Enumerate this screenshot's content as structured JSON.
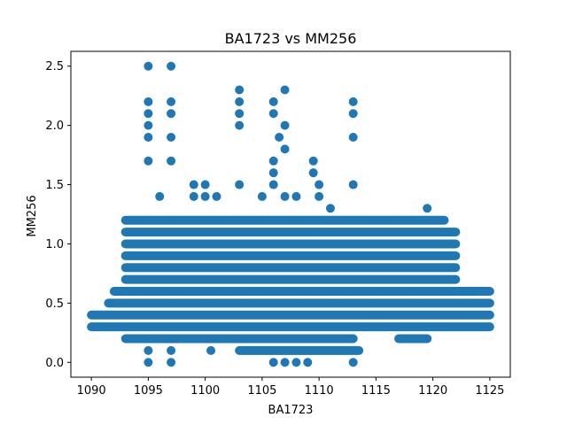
{
  "chart_data": {
    "type": "scatter",
    "title": "BA1723 vs MM256",
    "xlabel": "BA1723",
    "ylabel": "MM256",
    "xlim": [
      1088.2,
      1126.8
    ],
    "ylim": [
      -0.125,
      2.625
    ],
    "xticks": [
      1090,
      1095,
      1100,
      1105,
      1110,
      1115,
      1120,
      1125
    ],
    "yticks": [
      0.0,
      0.5,
      1.0,
      1.5,
      2.0,
      2.5
    ],
    "xtick_labels": [
      "1090",
      "1095",
      "1100",
      "1105",
      "1110",
      "1115",
      "1120",
      "1125"
    ],
    "ytick_labels": [
      "0.0",
      "0.5",
      "1.0",
      "1.5",
      "2.0",
      "2.5"
    ],
    "grid": false,
    "color": "#1f77b4",
    "bands": [
      {
        "y": 0.3,
        "x_start": 1090.0,
        "x_end": 1125.0
      },
      {
        "y": 0.4,
        "x_start": 1090.0,
        "x_end": 1125.0
      },
      {
        "y": 0.5,
        "x_start": 1091.5,
        "x_end": 1125.0
      },
      {
        "y": 0.6,
        "x_start": 1092.0,
        "x_end": 1125.0
      },
      {
        "y": 0.7,
        "x_start": 1093.0,
        "x_end": 1122.0
      },
      {
        "y": 0.8,
        "x_start": 1093.0,
        "x_end": 1122.0
      },
      {
        "y": 0.9,
        "x_start": 1093.0,
        "x_end": 1122.0
      },
      {
        "y": 1.0,
        "x_start": 1093.0,
        "x_end": 1122.0
      },
      {
        "y": 1.1,
        "x_start": 1093.0,
        "x_end": 1122.0
      },
      {
        "y": 1.2,
        "x_start": 1093.0,
        "x_end": 1121.0
      },
      {
        "y": 0.2,
        "x_start": 1093.0,
        "x_end": 1113.0
      },
      {
        "y": 0.2,
        "x_start": 1117.0,
        "x_end": 1119.5
      },
      {
        "y": 0.1,
        "x_start": 1103.0,
        "x_end": 1113.5
      }
    ],
    "points": [
      [
        1095.0,
        2.5
      ],
      [
        1097.0,
        2.5
      ],
      [
        1095.0,
        2.2
      ],
      [
        1097.0,
        2.2
      ],
      [
        1095.0,
        2.1
      ],
      [
        1097.0,
        2.1
      ],
      [
        1095.0,
        2.0
      ],
      [
        1095.0,
        1.9
      ],
      [
        1097.0,
        1.9
      ],
      [
        1095.0,
        1.7
      ],
      [
        1097.0,
        1.7
      ],
      [
        1096.0,
        1.4
      ],
      [
        1103.0,
        2.3
      ],
      [
        1103.0,
        2.2
      ],
      [
        1103.0,
        2.1
      ],
      [
        1103.0,
        2.0
      ],
      [
        1103.0,
        1.5
      ],
      [
        1106.0,
        2.2
      ],
      [
        1107.0,
        2.3
      ],
      [
        1106.0,
        2.1
      ],
      [
        1107.0,
        2.0
      ],
      [
        1106.5,
        1.9
      ],
      [
        1107.0,
        1.8
      ],
      [
        1106.0,
        1.7
      ],
      [
        1106.0,
        1.6
      ],
      [
        1106.0,
        1.5
      ],
      [
        1105.0,
        1.4
      ],
      [
        1109.5,
        1.7
      ],
      [
        1109.5,
        1.6
      ],
      [
        1110.0,
        1.5
      ],
      [
        1110.0,
        1.4
      ],
      [
        1113.0,
        2.2
      ],
      [
        1113.0,
        2.1
      ],
      [
        1113.0,
        1.9
      ],
      [
        1113.0,
        1.5
      ],
      [
        1099.0,
        1.5
      ],
      [
        1100.0,
        1.5
      ],
      [
        1099.0,
        1.4
      ],
      [
        1100.0,
        1.4
      ],
      [
        1101.0,
        1.4
      ],
      [
        1107.0,
        1.4
      ],
      [
        1108.0,
        1.4
      ],
      [
        1111.0,
        1.3
      ],
      [
        1119.5,
        1.3
      ],
      [
        1095.0,
        0.1
      ],
      [
        1097.0,
        0.1
      ],
      [
        1095.0,
        0.0
      ],
      [
        1097.0,
        0.0
      ],
      [
        1100.5,
        0.1
      ],
      [
        1106.0,
        0.0
      ],
      [
        1107.0,
        0.0
      ],
      [
        1108.0,
        0.0
      ],
      [
        1109.0,
        0.0
      ],
      [
        1113.0,
        0.0
      ]
    ]
  }
}
